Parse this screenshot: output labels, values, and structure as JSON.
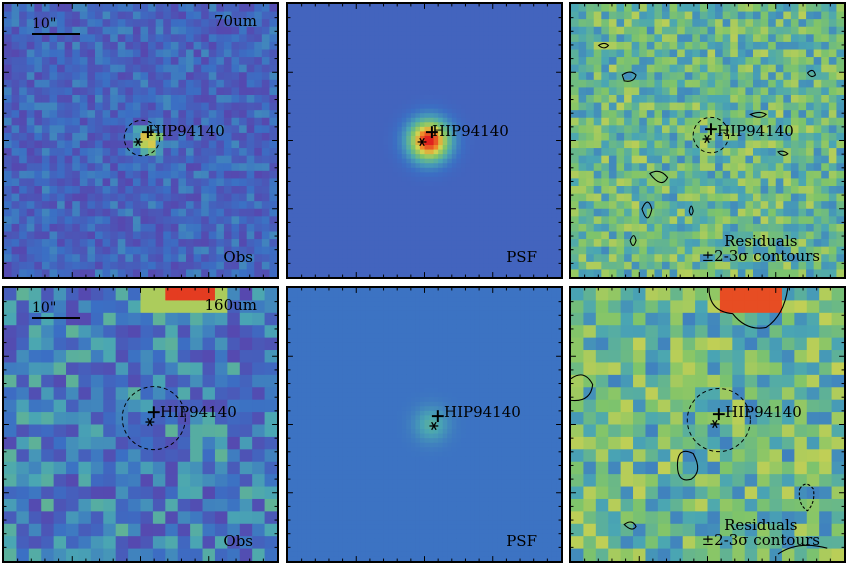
{
  "panels": [
    {
      "id": "obs70",
      "row": 0,
      "col": 0,
      "kind": "obs",
      "band": "70um",
      "scale": "10\"",
      "corner": "Obs",
      "source": "HIP94140"
    },
    {
      "id": "psf70",
      "row": 0,
      "col": 1,
      "kind": "psf",
      "corner": "PSF",
      "source": "HIP94140"
    },
    {
      "id": "res70",
      "row": 0,
      "col": 2,
      "kind": "res",
      "corner_line1": "Residuals",
      "corner_line2": "±2-3σ contours",
      "source": "HIP94140"
    },
    {
      "id": "obs160",
      "row": 1,
      "col": 0,
      "kind": "obs",
      "band": "160um",
      "scale": "10\"",
      "corner": "Obs",
      "source": "HIP94140"
    },
    {
      "id": "psf160",
      "row": 1,
      "col": 1,
      "kind": "psf",
      "corner": "PSF",
      "source": "HIP94140"
    },
    {
      "id": "res160",
      "row": 1,
      "col": 2,
      "kind": "res",
      "corner_line1": "Residuals",
      "corner_line2": "±2-3σ contours",
      "source": "HIP94140"
    }
  ],
  "colors": {
    "low": "#4a2c8f",
    "mid": "#3b6fc4",
    "teal": "#4aa6b3",
    "green": "#7fc46a",
    "yellow": "#e6d24a",
    "orange": "#f08a2a",
    "red": "#e0221e"
  }
}
